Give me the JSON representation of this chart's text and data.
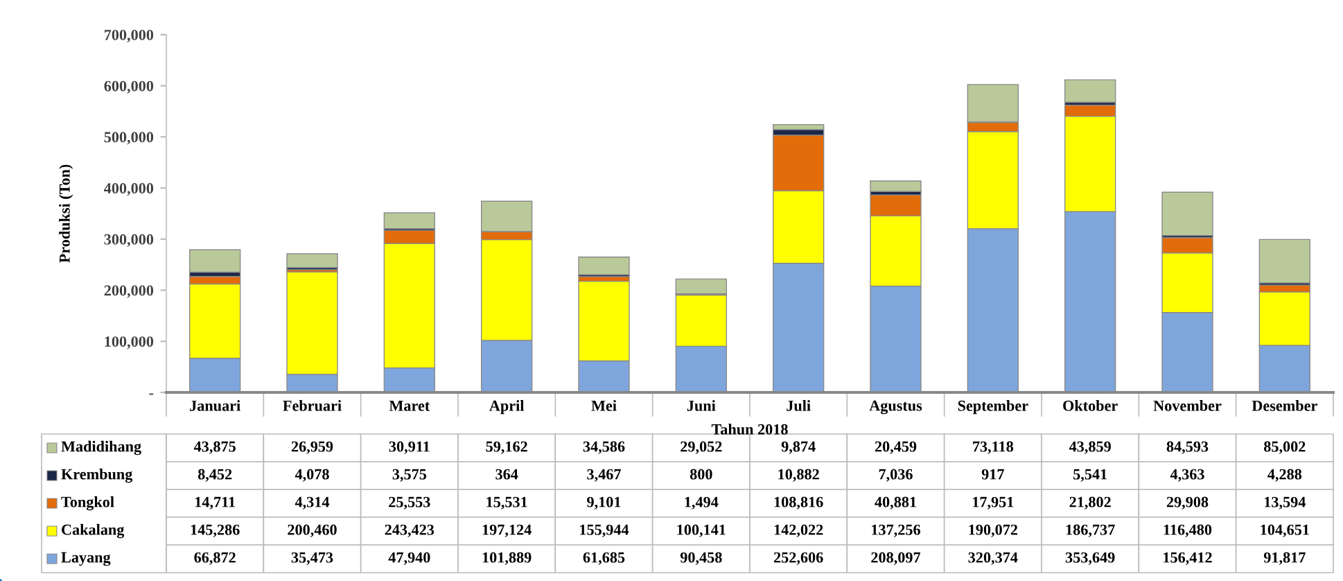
{
  "chart_data": {
    "type": "bar",
    "stacked": true,
    "xlabel": "Tahun 2018",
    "ylabel": "Produksi (Ton)",
    "categories": [
      "Januari",
      "Februari",
      "Maret",
      "April",
      "Mei",
      "Juni",
      "Juli",
      "Agustus",
      "September",
      "Oktober",
      "November",
      "Desember"
    ],
    "series": [
      {
        "name": "Layang",
        "color": "#7ea6dc",
        "values": [
          66872,
          35473,
          47940,
          101889,
          61685,
          90458,
          252606,
          208097,
          320374,
          353649,
          156412,
          91817
        ],
        "value_labels": [
          "66,872",
          "35,473",
          "47,940",
          "101,889",
          "61,685",
          "90,458",
          "252,606",
          "208,097",
          "320,374",
          "353,649",
          "156,412",
          "91,817"
        ]
      },
      {
        "name": "Cakalang",
        "color": "#ffff00",
        "values": [
          145286,
          200460,
          243423,
          197124,
          155944,
          100141,
          142022,
          137256,
          190072,
          186737,
          116480,
          104651
        ],
        "value_labels": [
          "145,286",
          "200,460",
          "243,423",
          "197,124",
          "155,944",
          "100,141",
          "142,022",
          "137,256",
          "190,072",
          "186,737",
          "116,480",
          "104,651"
        ]
      },
      {
        "name": "Tongkol",
        "color": "#e36c0a",
        "values": [
          14711,
          4314,
          25553,
          15531,
          9101,
          1494,
          108816,
          40881,
          17951,
          21802,
          29908,
          13594
        ],
        "value_labels": [
          "14,711",
          "4,314",
          "25,553",
          "15,531",
          "9,101",
          "1,494",
          "108,816",
          "40,881",
          "17,951",
          "21,802",
          "29,908",
          "13,594"
        ]
      },
      {
        "name": "Krembung",
        "color": "#1c2747",
        "values": [
          8452,
          4078,
          3575,
          364,
          3467,
          800,
          10882,
          7036,
          917,
          5541,
          4363,
          4288
        ],
        "value_labels": [
          "8,452",
          "4,078",
          "3,575",
          "364",
          "3,467",
          "800",
          "10,882",
          "7,036",
          "917",
          "5,541",
          "4,363",
          "4,288"
        ]
      },
      {
        "name": "Madidihang",
        "color": "#b9c99a",
        "values": [
          43875,
          26959,
          30911,
          59162,
          34586,
          29052,
          9874,
          20459,
          73118,
          43859,
          84593,
          85002
        ],
        "value_labels": [
          "43,875",
          "26,959",
          "30,911",
          "59,162",
          "34,586",
          "29,052",
          "9,874",
          "20,459",
          "73,118",
          "43,859",
          "84,593",
          "85,002"
        ]
      }
    ],
    "ylim": [
      0,
      700000
    ],
    "yticks": [
      {
        "value": 0,
        "label": "-"
      },
      {
        "value": 100000,
        "label": "100,000"
      },
      {
        "value": 200000,
        "label": "200,000"
      },
      {
        "value": 300000,
        "label": "300,000"
      },
      {
        "value": 400000,
        "label": "400,000"
      },
      {
        "value": 500000,
        "label": "500,000"
      },
      {
        "value": 600000,
        "label": "600,000"
      },
      {
        "value": 700000,
        "label": "700,000"
      }
    ],
    "grid": false,
    "legend": "bottom left"
  }
}
